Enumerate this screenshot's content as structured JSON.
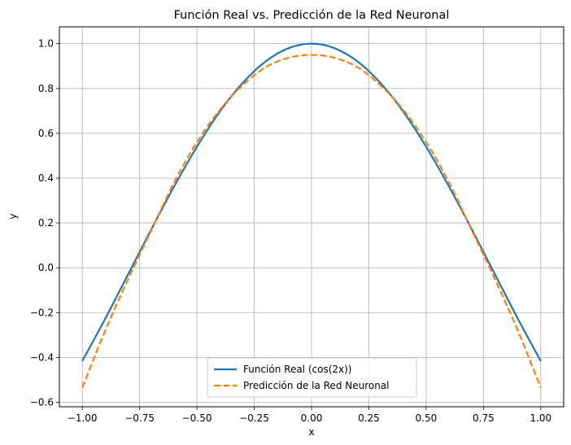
{
  "chart_data": {
    "type": "line",
    "title": "Función Real vs. Predicción de la Red Neuronal",
    "xlabel": "x",
    "ylabel": "y",
    "xlim": [
      -1.1,
      1.1
    ],
    "ylim": [
      -0.62,
      1.075
    ],
    "grid": true,
    "legend_position": "lower center",
    "x_ticks": [
      -1.0,
      -0.75,
      -0.5,
      -0.25,
      0.0,
      0.25,
      0.5,
      0.75,
      1.0
    ],
    "x_tick_labels": [
      "−1.00",
      "−0.75",
      "−0.50",
      "−0.25",
      "0.00",
      "0.25",
      "0.50",
      "0.75",
      "1.00"
    ],
    "y_ticks": [
      -0.6,
      -0.4,
      -0.2,
      0.0,
      0.2,
      0.4,
      0.6,
      0.8,
      1.0
    ],
    "y_tick_labels": [
      "−0.6",
      "−0.4",
      "−0.2",
      "0.0",
      "0.2",
      "0.4",
      "0.6",
      "0.8",
      "1.0"
    ],
    "x": [
      -1.0,
      -0.9,
      -0.8,
      -0.7,
      -0.6,
      -0.5,
      -0.4,
      -0.3,
      -0.2,
      -0.1,
      0.0,
      0.1,
      0.2,
      0.3,
      0.4,
      0.5,
      0.6,
      0.7,
      0.8,
      0.9,
      1.0
    ],
    "series": [
      {
        "name": "Función Real (cos(2x))",
        "color": "#1f77b4",
        "style": "solid",
        "values": [
          -0.416,
          -0.227,
          -0.029,
          0.17,
          0.362,
          0.54,
          0.697,
          0.825,
          0.921,
          0.98,
          1.0,
          0.98,
          0.921,
          0.825,
          0.697,
          0.54,
          0.362,
          0.17,
          -0.029,
          -0.227,
          -0.416
        ]
      },
      {
        "name": "Predicción de la Red Neuronal",
        "color": "#ff7f0e",
        "style": "dashed",
        "values": [
          -0.535,
          -0.28,
          -0.05,
          0.165,
          0.38,
          0.56,
          0.705,
          0.815,
          0.895,
          0.937,
          0.95,
          0.937,
          0.895,
          0.815,
          0.705,
          0.56,
          0.38,
          0.165,
          -0.05,
          -0.28,
          -0.535
        ]
      }
    ]
  }
}
